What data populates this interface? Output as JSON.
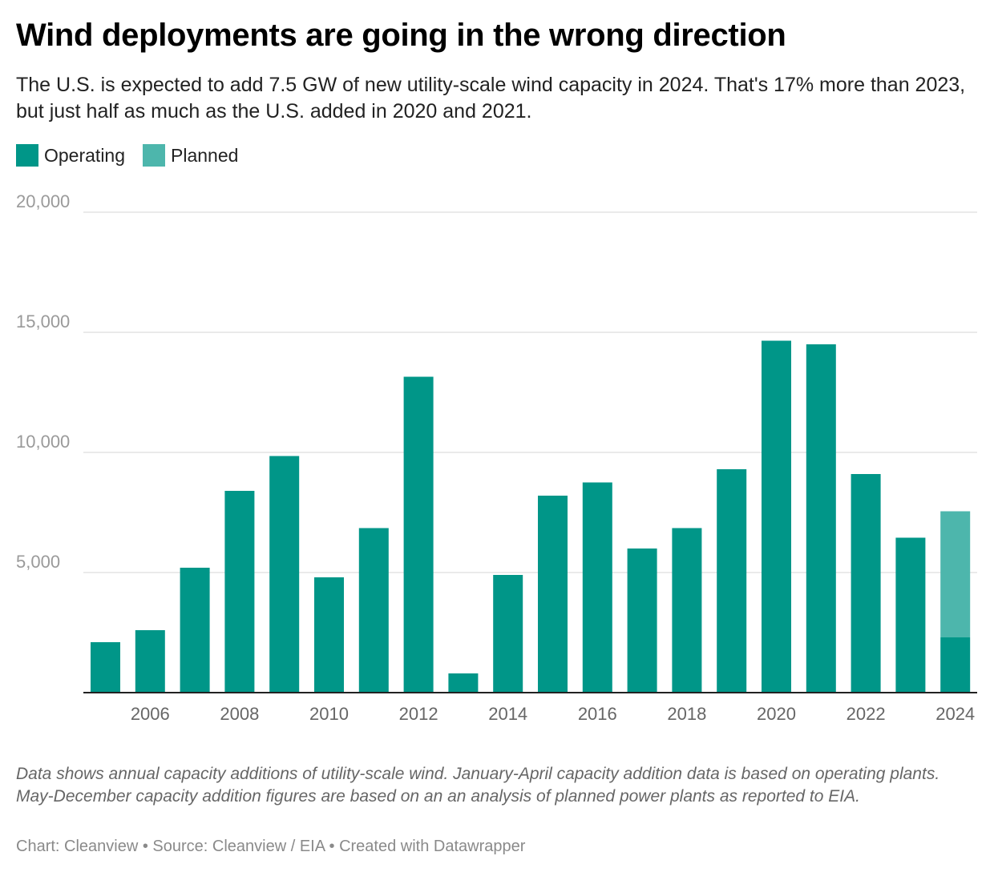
{
  "header": {
    "title": "Wind deployments are going in the wrong direction",
    "subtitle": "The U.S. is expected to add 7.5 GW of new utility-scale wind capacity in 2024. That's 17% more than 2023, but just half as much as the U.S. added in 2020 and 2021."
  },
  "legend": {
    "items": [
      {
        "label": "Operating",
        "color": "#009688"
      },
      {
        "label": "Planned",
        "color": "#4db6ac"
      }
    ]
  },
  "chart_data": {
    "type": "bar",
    "stacked": true,
    "categories": [
      "2005",
      "2006",
      "2007",
      "2008",
      "2009",
      "2010",
      "2011",
      "2012",
      "2013",
      "2014",
      "2015",
      "2016",
      "2017",
      "2018",
      "2019",
      "2020",
      "2021",
      "2022",
      "2023",
      "2024"
    ],
    "x_tick_labels": [
      "2006",
      "2008",
      "2010",
      "2012",
      "2014",
      "2016",
      "2018",
      "2020",
      "2022",
      "2024"
    ],
    "series": [
      {
        "name": "Operating",
        "color": "#009688",
        "values": [
          2100,
          2600,
          5200,
          8400,
          9850,
          4800,
          6850,
          13150,
          800,
          4900,
          8200,
          8750,
          6000,
          6850,
          9300,
          14650,
          14500,
          9100,
          6450,
          2300
        ]
      },
      {
        "name": "Planned",
        "color": "#4db6ac",
        "values": [
          0,
          0,
          0,
          0,
          0,
          0,
          0,
          0,
          0,
          0,
          0,
          0,
          0,
          0,
          0,
          0,
          0,
          0,
          0,
          5250
        ]
      }
    ],
    "y_ticks": [
      5000,
      10000,
      15000,
      20000
    ],
    "y_tick_labels": [
      "5,000",
      "10,000",
      "15,000",
      "20,000"
    ],
    "ylim": [
      0,
      20000
    ],
    "grid": true,
    "legend_position": "top-left"
  },
  "footer": {
    "notes": "Data shows annual capacity additions of utility-scale wind. January-April capacity addition data is based on operating plants. May-December capacity addition figures are based on an an analysis of planned power plants as reported to EIA.",
    "byline": "Chart: Cleanview • Source: Cleanview / EIA • Created with Datawrapper"
  }
}
